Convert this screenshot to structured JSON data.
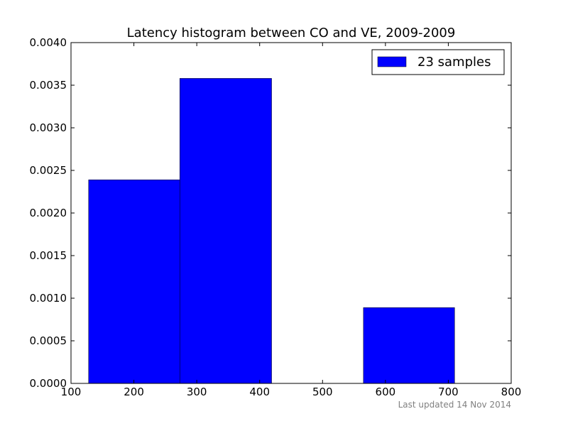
{
  "chart_data": {
    "type": "bar",
    "title": "Latency histogram between CO and VE, 2009-2009",
    "xlabel": "",
    "ylabel": "",
    "xlim": [
      100,
      800
    ],
    "ylim": [
      0,
      0.004
    ],
    "x_ticks": [
      100,
      200,
      300,
      400,
      500,
      600,
      700,
      800
    ],
    "x_tick_labels": [
      "100",
      "200",
      "300",
      "400",
      "500",
      "600",
      "700",
      "800"
    ],
    "y_ticks": [
      0,
      0.0005,
      0.001,
      0.0015,
      0.002,
      0.0025,
      0.003,
      0.0035,
      0.004
    ],
    "y_tick_labels": [
      "0.0000",
      "0.0005",
      "0.0010",
      "0.0015",
      "0.0020",
      "0.0025",
      "0.0030",
      "0.0035",
      "0.0040"
    ],
    "bins": [
      {
        "x0": 128,
        "x1": 273,
        "value": 0.00239
      },
      {
        "x0": 273,
        "x1": 419,
        "value": 0.00358
      },
      {
        "x0": 419,
        "x1": 565,
        "value": 0.0
      },
      {
        "x0": 565,
        "x1": 710,
        "value": 0.00089
      }
    ],
    "series": [
      {
        "name": "23 samples",
        "color": "#0000ff"
      }
    ],
    "legend_position": "top-right",
    "grid": false
  },
  "footer": {
    "text": "Last updated 14 Nov 2014"
  }
}
